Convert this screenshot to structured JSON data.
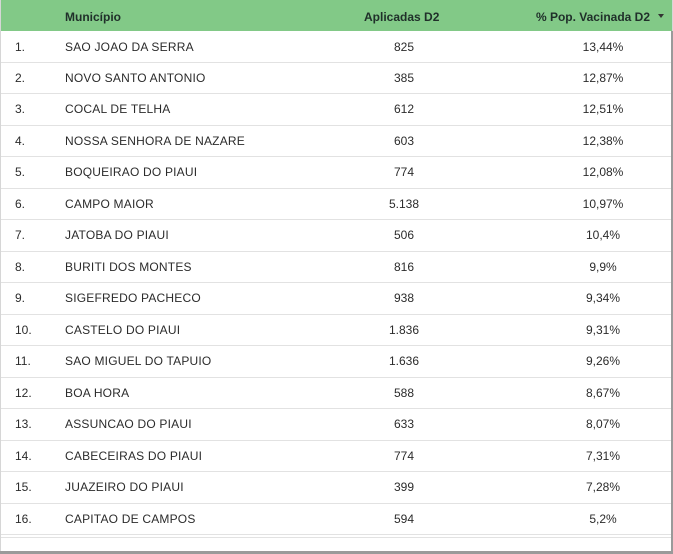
{
  "table": {
    "headers": {
      "municipio": "Município",
      "aplicadas": "Aplicadas D2",
      "pct_vacinada": "% Pop. Vacinada D2"
    },
    "sort": {
      "column": "pct_vacinada",
      "direction": "desc",
      "icon": "sort-desc-icon"
    },
    "colors": {
      "header_bg": "#82c987",
      "row_divider": "#e2e2e2"
    },
    "rows": [
      {
        "idx": "1.",
        "municipio": "SAO JOAO DA SERRA",
        "aplicadas": "825",
        "pct": "13,44%"
      },
      {
        "idx": "2.",
        "municipio": "NOVO SANTO ANTONIO",
        "aplicadas": "385",
        "pct": "12,87%"
      },
      {
        "idx": "3.",
        "municipio": "COCAL DE TELHA",
        "aplicadas": "612",
        "pct": "12,51%"
      },
      {
        "idx": "4.",
        "municipio": "NOSSA SENHORA DE NAZARE",
        "aplicadas": "603",
        "pct": "12,38%"
      },
      {
        "idx": "5.",
        "municipio": "BOQUEIRAO DO PIAUI",
        "aplicadas": "774",
        "pct": "12,08%"
      },
      {
        "idx": "6.",
        "municipio": "CAMPO MAIOR",
        "aplicadas": "5.138",
        "pct": "10,97%"
      },
      {
        "idx": "7.",
        "municipio": "JATOBA DO PIAUI",
        "aplicadas": "506",
        "pct": "10,4%"
      },
      {
        "idx": "8.",
        "municipio": "BURITI DOS MONTES",
        "aplicadas": "816",
        "pct": "9,9%"
      },
      {
        "idx": "9.",
        "municipio": "SIGEFREDO PACHECO",
        "aplicadas": "938",
        "pct": "9,34%"
      },
      {
        "idx": "10.",
        "municipio": "CASTELO DO PIAUI",
        "aplicadas": "1.836",
        "pct": "9,31%"
      },
      {
        "idx": "11.",
        "municipio": "SAO MIGUEL DO TAPUIO",
        "aplicadas": "1.636",
        "pct": "9,26%"
      },
      {
        "idx": "12.",
        "municipio": "BOA HORA",
        "aplicadas": "588",
        "pct": "8,67%"
      },
      {
        "idx": "13.",
        "municipio": "ASSUNCAO DO PIAUI",
        "aplicadas": "633",
        "pct": "8,07%"
      },
      {
        "idx": "14.",
        "municipio": "CABECEIRAS DO PIAUI",
        "aplicadas": "774",
        "pct": "7,31%"
      },
      {
        "idx": "15.",
        "municipio": "JUAZEIRO DO PIAUI",
        "aplicadas": "399",
        "pct": "7,28%"
      },
      {
        "idx": "16.",
        "municipio": "CAPITAO DE CAMPOS",
        "aplicadas": "594",
        "pct": "5,2%"
      }
    ]
  }
}
